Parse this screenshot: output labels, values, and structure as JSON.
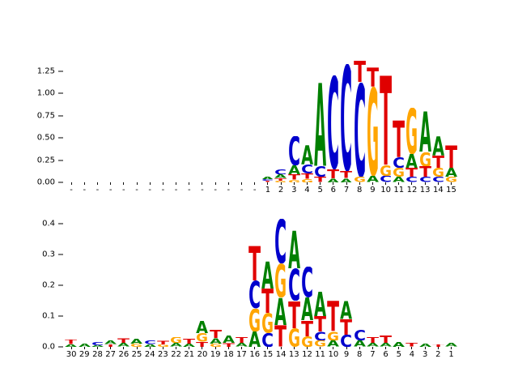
{
  "figure": {
    "background": "#ffffff"
  },
  "letter_colors": {
    "A": "#008000",
    "C": "#0000cc",
    "G": "#ffa500",
    "T": "#e00000"
  },
  "chart_data": [
    {
      "type": "sequence_logo",
      "title": "",
      "xlabel": "",
      "ylabel": "",
      "ylim": [
        0,
        1.4
      ],
      "grid": false,
      "legend": "none",
      "yticks": [
        [
          "0.00",
          0
        ],
        [
          "0.25",
          0.25
        ],
        [
          "0.50",
          0.5
        ],
        [
          "0.75",
          0.75
        ],
        [
          "1.00",
          1.0
        ],
        [
          "1.25",
          1.25
        ]
      ],
      "positions": [
        {
          "label": "-",
          "stack": []
        },
        {
          "label": "-",
          "stack": []
        },
        {
          "label": "-",
          "stack": []
        },
        {
          "label": "-",
          "stack": []
        },
        {
          "label": "-",
          "stack": []
        },
        {
          "label": "-",
          "stack": []
        },
        {
          "label": "-",
          "stack": []
        },
        {
          "label": "-",
          "stack": []
        },
        {
          "label": "-",
          "stack": []
        },
        {
          "label": "-",
          "stack": []
        },
        {
          "label": "-",
          "stack": []
        },
        {
          "label": "-",
          "stack": []
        },
        {
          "label": "-",
          "stack": []
        },
        {
          "label": "-",
          "stack": []
        },
        {
          "label": "-",
          "stack": []
        },
        {
          "label": "1",
          "stack": [
            [
              "A",
              0.03
            ],
            [
              "C",
              0.02
            ],
            [
              "T",
              0.015
            ]
          ]
        },
        {
          "label": "2",
          "stack": [
            [
              "C",
              0.06
            ],
            [
              "A",
              0.04
            ],
            [
              "T",
              0.03
            ],
            [
              "G",
              0.02
            ]
          ]
        },
        {
          "label": "3",
          "stack": [
            [
              "C",
              0.33
            ],
            [
              "A",
              0.1
            ],
            [
              "T",
              0.06
            ],
            [
              "G",
              0.03
            ]
          ]
        },
        {
          "label": "4",
          "stack": [
            [
              "A",
              0.22
            ],
            [
              "C",
              0.1
            ],
            [
              "T",
              0.06
            ],
            [
              "G",
              0.04
            ]
          ]
        },
        {
          "label": "5",
          "stack": [
            [
              "A",
              0.95
            ],
            [
              "C",
              0.12
            ],
            [
              "T",
              0.06
            ]
          ]
        },
        {
          "label": "6",
          "stack": [
            [
              "C",
              1.05
            ],
            [
              "T",
              0.1
            ],
            [
              "A",
              0.05
            ]
          ]
        },
        {
          "label": "7",
          "stack": [
            [
              "C",
              1.2
            ],
            [
              "T",
              0.08
            ],
            [
              "A",
              0.05
            ]
          ]
        },
        {
          "label": "8",
          "stack": [
            [
              "T",
              0.24
            ],
            [
              "C",
              1.06
            ],
            [
              "G",
              0.06
            ]
          ]
        },
        {
          "label": "9",
          "stack": [
            [
              "T",
              0.22
            ],
            [
              "G",
              1.0
            ],
            [
              "A",
              0.07
            ]
          ]
        },
        {
          "label": "10",
          "stack": [
            [
              "T",
              1.02
            ],
            [
              "G",
              0.12
            ],
            [
              "C",
              0.07
            ]
          ]
        },
        {
          "label": "11",
          "stack": [
            [
              "T",
              0.42
            ],
            [
              "C",
              0.12
            ],
            [
              "G",
              0.1
            ],
            [
              "A",
              0.06
            ]
          ]
        },
        {
          "label": "12",
          "stack": [
            [
              "G",
              0.52
            ],
            [
              "A",
              0.16
            ],
            [
              "T",
              0.1
            ],
            [
              "C",
              0.06
            ]
          ]
        },
        {
          "label": "13",
          "stack": [
            [
              "A",
              0.46
            ],
            [
              "G",
              0.16
            ],
            [
              "T",
              0.12
            ],
            [
              "C",
              0.06
            ]
          ]
        },
        {
          "label": "14",
          "stack": [
            [
              "A",
              0.22
            ],
            [
              "T",
              0.14
            ],
            [
              "G",
              0.1
            ],
            [
              "C",
              0.06
            ]
          ]
        },
        {
          "label": "15",
          "stack": [
            [
              "T",
              0.26
            ],
            [
              "A",
              0.1
            ],
            [
              "G",
              0.06
            ]
          ]
        }
      ]
    },
    {
      "type": "sequence_logo",
      "title": "",
      "xlabel": "",
      "ylabel": "",
      "ylim": [
        0,
        0.45
      ],
      "grid": false,
      "legend": "none",
      "yticks": [
        [
          "0.0",
          0
        ],
        [
          "0.1",
          0.1
        ],
        [
          "0.2",
          0.2
        ],
        [
          "0.3",
          0.3
        ],
        [
          "0.4",
          0.4
        ]
      ],
      "positions": [
        {
          "label": "30",
          "stack": [
            [
              "T",
              0.015
            ],
            [
              "A",
              0.008
            ]
          ]
        },
        {
          "label": "29",
          "stack": [
            [
              "A",
              0.01
            ]
          ]
        },
        {
          "label": "28",
          "stack": [
            [
              "C",
              0.01
            ],
            [
              "A",
              0.006
            ]
          ]
        },
        {
          "label": "27",
          "stack": [
            [
              "A",
              0.012
            ],
            [
              "T",
              0.008
            ]
          ]
        },
        {
          "label": "26",
          "stack": [
            [
              "T",
              0.018
            ],
            [
              "A",
              0.012
            ]
          ]
        },
        {
          "label": "25",
          "stack": [
            [
              "A",
              0.016
            ],
            [
              "G",
              0.01
            ]
          ]
        },
        {
          "label": "24",
          "stack": [
            [
              "C",
              0.012
            ],
            [
              "A",
              0.008
            ]
          ]
        },
        {
          "label": "23",
          "stack": [
            [
              "T",
              0.014
            ],
            [
              "G",
              0.008
            ]
          ]
        },
        {
          "label": "22",
          "stack": [
            [
              "G",
              0.02
            ],
            [
              "A",
              0.012
            ]
          ]
        },
        {
          "label": "21",
          "stack": [
            [
              "T",
              0.016
            ],
            [
              "A",
              0.01
            ]
          ]
        },
        {
          "label": "20",
          "stack": [
            [
              "A",
              0.04
            ],
            [
              "G",
              0.028
            ],
            [
              "T",
              0.016
            ]
          ]
        },
        {
          "label": "19",
          "stack": [
            [
              "T",
              0.028
            ],
            [
              "A",
              0.018
            ],
            [
              "G",
              0.01
            ]
          ]
        },
        {
          "label": "18",
          "stack": [
            [
              "A",
              0.024
            ],
            [
              "T",
              0.014
            ]
          ]
        },
        {
          "label": "17",
          "stack": [
            [
              "T",
              0.02
            ],
            [
              "A",
              0.012
            ]
          ]
        },
        {
          "label": "16",
          "stack": [
            [
              "T",
              0.115
            ],
            [
              "C",
              0.09
            ],
            [
              "G",
              0.075
            ],
            [
              "A",
              0.05
            ]
          ]
        },
        {
          "label": "15",
          "stack": [
            [
              "A",
              0.09
            ],
            [
              "T",
              0.08
            ],
            [
              "G",
              0.065
            ],
            [
              "C",
              0.045
            ]
          ]
        },
        {
          "label": "14",
          "stack": [
            [
              "C",
              0.145
            ],
            [
              "G",
              0.11
            ],
            [
              "A",
              0.09
            ],
            [
              "T",
              0.07
            ]
          ]
        },
        {
          "label": "13",
          "stack": [
            [
              "A",
              0.125
            ],
            [
              "C",
              0.105
            ],
            [
              "T",
              0.09
            ],
            [
              "G",
              0.06
            ]
          ]
        },
        {
          "label": "12",
          "stack": [
            [
              "C",
              0.1
            ],
            [
              "A",
              0.075
            ],
            [
              "T",
              0.05
            ],
            [
              "G",
              0.035
            ]
          ]
        },
        {
          "label": "11",
          "stack": [
            [
              "A",
              0.08
            ],
            [
              "T",
              0.05
            ],
            [
              "C",
              0.03
            ],
            [
              "G",
              0.02
            ]
          ]
        },
        {
          "label": "10",
          "stack": [
            [
              "T",
              0.1
            ],
            [
              "G",
              0.03
            ],
            [
              "A",
              0.02
            ]
          ]
        },
        {
          "label": "9",
          "stack": [
            [
              "A",
              0.06
            ],
            [
              "T",
              0.05
            ],
            [
              "C",
              0.04
            ]
          ]
        },
        {
          "label": "8",
          "stack": [
            [
              "C",
              0.035
            ],
            [
              "A",
              0.02
            ]
          ]
        },
        {
          "label": "7",
          "stack": [
            [
              "T",
              0.02
            ],
            [
              "A",
              0.012
            ]
          ]
        },
        {
          "label": "6",
          "stack": [
            [
              "T",
              0.026
            ],
            [
              "A",
              0.012
            ]
          ]
        },
        {
          "label": "5",
          "stack": [
            [
              "A",
              0.016
            ]
          ]
        },
        {
          "label": "4",
          "stack": [
            [
              "T",
              0.012
            ]
          ]
        },
        {
          "label": "3",
          "stack": [
            [
              "A",
              0.01
            ]
          ]
        },
        {
          "label": "2",
          "stack": [
            [
              "T",
              0.008
            ]
          ]
        },
        {
          "label": "1",
          "stack": [
            [
              "A",
              0.012
            ]
          ]
        }
      ]
    }
  ]
}
